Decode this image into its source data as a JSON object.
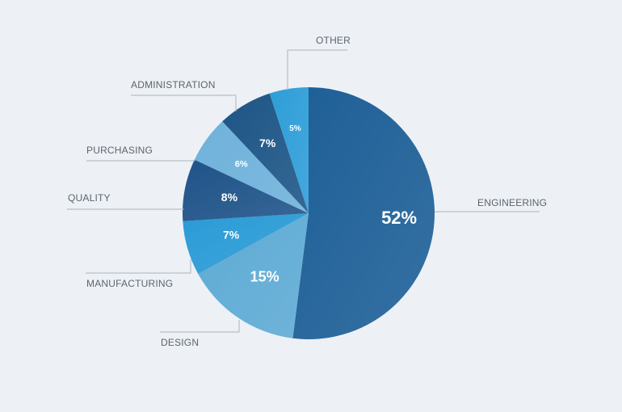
{
  "chart_data": {
    "type": "pie",
    "slices": [
      {
        "name": "ENGINEERING",
        "value": 52,
        "label": "52%",
        "color": "#1d5f97"
      },
      {
        "name": "DESIGN",
        "value": 15,
        "label": "15%",
        "color": "#5eabd5"
      },
      {
        "name": "MANUFACTURING",
        "value": 7,
        "label": "7%",
        "color": "#2a9bd6"
      },
      {
        "name": "QUALITY",
        "value": 8,
        "label": "8%",
        "color": "#1f5389"
      },
      {
        "name": "PURCHASING",
        "value": 6,
        "label": "6%",
        "color": "#6fb2db"
      },
      {
        "name": "ADMINISTRATION",
        "value": 7,
        "label": "7%",
        "color": "#1d5586"
      },
      {
        "name": "OTHER",
        "value": 5,
        "label": "5%",
        "color": "#2e9ed8"
      }
    ],
    "start_angle_deg": 0,
    "direction": "clockwise",
    "legend": "none",
    "labels": "outside with leader lines"
  }
}
